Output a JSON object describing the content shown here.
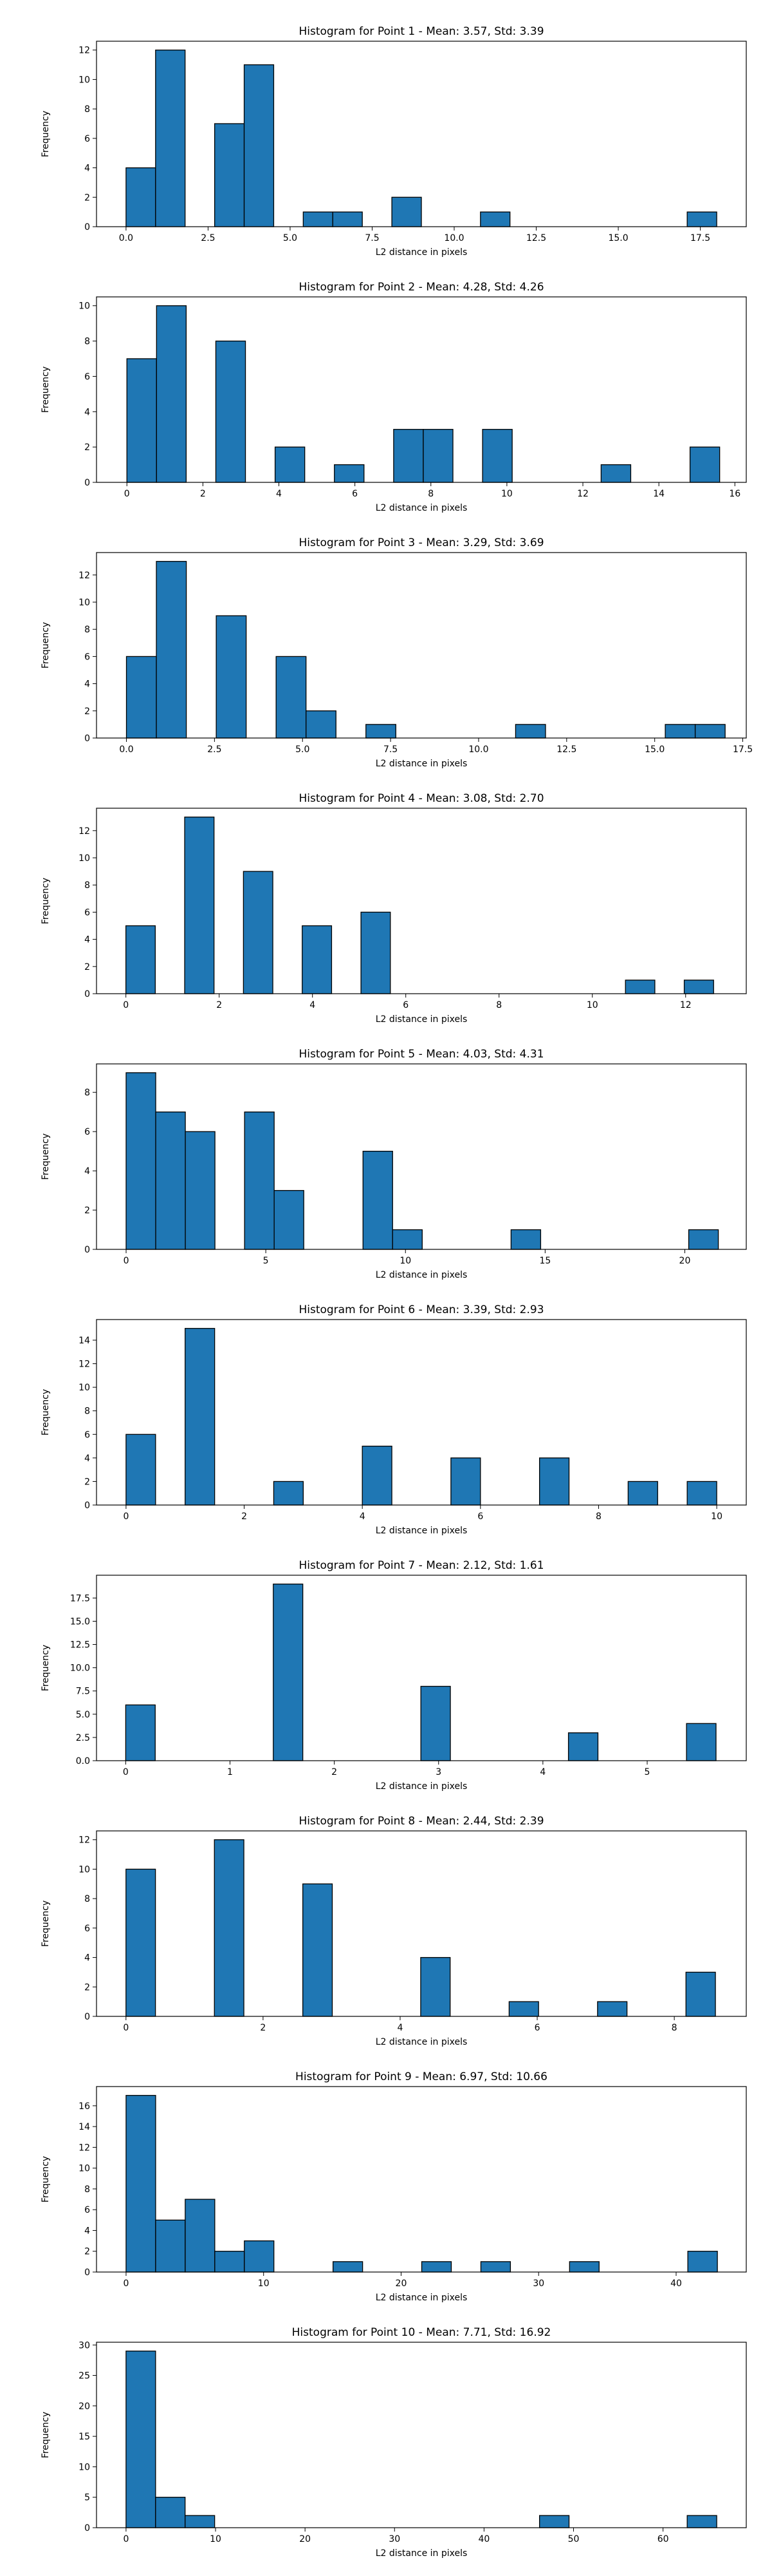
{
  "style": {
    "bar_fill": "#1f77b4",
    "bar_edge": "#000000",
    "axis_color": "#000000"
  },
  "chart_data": [
    {
      "type": "bar",
      "subtype": "histogram",
      "title": "Histogram for Point 1 - Mean: 3.57, Std: 3.39",
      "xlabel": "L2 distance in pixels",
      "ylabel": "Frequency",
      "xlim": [
        -0.9,
        18.9
      ],
      "ylim": [
        0,
        12.6
      ],
      "xticks": [
        0.0,
        2.5,
        5.0,
        7.5,
        10.0,
        12.5,
        15.0,
        17.5
      ],
      "xtick_labels": [
        "0.0",
        "2.5",
        "5.0",
        "7.5",
        "10.0",
        "12.5",
        "15.0",
        "17.5"
      ],
      "yticks": [
        0,
        2,
        4,
        6,
        8,
        10,
        12
      ],
      "bins": [
        {
          "x0": 0.0,
          "x1": 0.9,
          "count": 4
        },
        {
          "x0": 0.9,
          "x1": 1.8,
          "count": 12
        },
        {
          "x0": 2.7,
          "x1": 3.6,
          "count": 7
        },
        {
          "x0": 3.6,
          "x1": 4.5,
          "count": 11
        },
        {
          "x0": 5.4,
          "x1": 6.3,
          "count": 1
        },
        {
          "x0": 6.3,
          "x1": 7.2,
          "count": 1
        },
        {
          "x0": 8.1,
          "x1": 9.0,
          "count": 2
        },
        {
          "x0": 10.8,
          "x1": 11.7,
          "count": 1
        },
        {
          "x0": 17.1,
          "x1": 18.0,
          "count": 1
        }
      ]
    },
    {
      "type": "bar",
      "subtype": "histogram",
      "title": "Histogram for Point 2 - Mean: 4.28, Std: 4.26",
      "xlabel": "L2 distance in pixels",
      "ylabel": "Frequency",
      "xlim": [
        -0.8,
        16.3
      ],
      "ylim": [
        0,
        10.5
      ],
      "xticks": [
        0,
        2,
        4,
        6,
        8,
        10,
        12,
        14,
        16
      ],
      "xtick_labels": [
        "0",
        "2",
        "4",
        "6",
        "8",
        "10",
        "12",
        "14",
        "16"
      ],
      "yticks": [
        0,
        2,
        4,
        6,
        8,
        10
      ],
      "bins": [
        {
          "x0": 0.0,
          "x1": 0.78,
          "count": 7
        },
        {
          "x0": 0.78,
          "x1": 1.56,
          "count": 10
        },
        {
          "x0": 2.34,
          "x1": 3.12,
          "count": 8
        },
        {
          "x0": 3.9,
          "x1": 4.68,
          "count": 2
        },
        {
          "x0": 5.46,
          "x1": 6.24,
          "count": 1
        },
        {
          "x0": 7.02,
          "x1": 7.8,
          "count": 3
        },
        {
          "x0": 7.8,
          "x1": 8.58,
          "count": 3
        },
        {
          "x0": 9.36,
          "x1": 10.14,
          "count": 3
        },
        {
          "x0": 12.48,
          "x1": 13.26,
          "count": 1
        },
        {
          "x0": 14.82,
          "x1": 15.6,
          "count": 2
        }
      ]
    },
    {
      "type": "bar",
      "subtype": "histogram",
      "title": "Histogram for Point 3 - Mean: 3.29, Std: 3.69",
      "xlabel": "L2 distance in pixels",
      "ylabel": "Frequency",
      "xlim": [
        -0.85,
        17.6
      ],
      "ylim": [
        0,
        13.65
      ],
      "xticks": [
        0.0,
        2.5,
        5.0,
        7.5,
        10.0,
        12.5,
        15.0,
        17.5
      ],
      "xtick_labels": [
        "0.0",
        "2.5",
        "5.0",
        "7.5",
        "10.0",
        "12.5",
        "15.0",
        "17.5"
      ],
      "yticks": [
        0,
        2,
        4,
        6,
        8,
        10,
        12
      ],
      "bins": [
        {
          "x0": 0.0,
          "x1": 0.85,
          "count": 6
        },
        {
          "x0": 0.85,
          "x1": 1.7,
          "count": 13
        },
        {
          "x0": 2.55,
          "x1": 3.4,
          "count": 9
        },
        {
          "x0": 4.25,
          "x1": 5.1,
          "count": 6
        },
        {
          "x0": 5.1,
          "x1": 5.95,
          "count": 2
        },
        {
          "x0": 6.8,
          "x1": 7.65,
          "count": 1
        },
        {
          "x0": 11.05,
          "x1": 11.9,
          "count": 1
        },
        {
          "x0": 15.3,
          "x1": 16.15,
          "count": 1
        },
        {
          "x0": 16.15,
          "x1": 17.0,
          "count": 1
        }
      ]
    },
    {
      "type": "bar",
      "subtype": "histogram",
      "title": "Histogram for Point 4 - Mean: 3.08, Std: 2.70",
      "xlabel": "L2 distance in pixels",
      "ylabel": "Frequency",
      "xlim": [
        -0.63,
        13.3
      ],
      "ylim": [
        0,
        13.65
      ],
      "xticks": [
        0,
        2,
        4,
        6,
        8,
        10,
        12
      ],
      "xtick_labels": [
        "0",
        "2",
        "4",
        "6",
        "8",
        "10",
        "12"
      ],
      "yticks": [
        0,
        2,
        4,
        6,
        8,
        10,
        12
      ],
      "bins": [
        {
          "x0": 0.0,
          "x1": 0.63,
          "count": 5
        },
        {
          "x0": 1.26,
          "x1": 1.89,
          "count": 13
        },
        {
          "x0": 2.52,
          "x1": 3.15,
          "count": 9
        },
        {
          "x0": 3.78,
          "x1": 4.41,
          "count": 5
        },
        {
          "x0": 5.04,
          "x1": 5.67,
          "count": 6
        },
        {
          "x0": 10.71,
          "x1": 11.34,
          "count": 1
        },
        {
          "x0": 11.97,
          "x1": 12.6,
          "count": 1
        }
      ]
    },
    {
      "type": "bar",
      "subtype": "histogram",
      "title": "Histogram for Point 5 - Mean: 4.03, Std: 4.31",
      "xlabel": "L2 distance in pixels",
      "ylabel": "Frequency",
      "xlim": [
        -1.06,
        22.2
      ],
      "ylim": [
        0,
        9.45
      ],
      "xticks": [
        0,
        5,
        10,
        15,
        20
      ],
      "xtick_labels": [
        "0",
        "5",
        "10",
        "15",
        "20"
      ],
      "yticks": [
        0,
        2,
        4,
        6,
        8
      ],
      "bins": [
        {
          "x0": 0.0,
          "x1": 1.06,
          "count": 9
        },
        {
          "x0": 1.06,
          "x1": 2.12,
          "count": 7
        },
        {
          "x0": 2.12,
          "x1": 3.18,
          "count": 6
        },
        {
          "x0": 4.24,
          "x1": 5.3,
          "count": 7
        },
        {
          "x0": 5.3,
          "x1": 6.36,
          "count": 3
        },
        {
          "x0": 8.48,
          "x1": 9.54,
          "count": 5
        },
        {
          "x0": 9.54,
          "x1": 10.6,
          "count": 1
        },
        {
          "x0": 13.78,
          "x1": 14.84,
          "count": 1
        },
        {
          "x0": 20.14,
          "x1": 21.2,
          "count": 1
        }
      ]
    },
    {
      "type": "bar",
      "subtype": "histogram",
      "title": "Histogram for Point 6 - Mean: 3.39, Std: 2.93",
      "xlabel": "L2 distance in pixels",
      "ylabel": "Frequency",
      "xlim": [
        -0.5,
        10.5
      ],
      "ylim": [
        0,
        15.75
      ],
      "xticks": [
        0,
        2,
        4,
        6,
        8,
        10
      ],
      "xtick_labels": [
        "0",
        "2",
        "4",
        "6",
        "8",
        "10"
      ],
      "yticks": [
        0,
        2,
        4,
        6,
        8,
        10,
        12,
        14
      ],
      "bins": [
        {
          "x0": 0.0,
          "x1": 0.5,
          "count": 6
        },
        {
          "x0": 1.0,
          "x1": 1.5,
          "count": 15
        },
        {
          "x0": 2.5,
          "x1": 3.0,
          "count": 2
        },
        {
          "x0": 4.0,
          "x1": 4.5,
          "count": 5
        },
        {
          "x0": 5.5,
          "x1": 6.0,
          "count": 4
        },
        {
          "x0": 7.0,
          "x1": 7.5,
          "count": 4
        },
        {
          "x0": 8.5,
          "x1": 9.0,
          "count": 2
        },
        {
          "x0": 9.5,
          "x1": 10.0,
          "count": 2
        }
      ]
    },
    {
      "type": "bar",
      "subtype": "histogram",
      "title": "Histogram for Point 7 - Mean: 2.12, Std: 1.61",
      "xlabel": "L2 distance in pixels",
      "ylabel": "Frequency",
      "xlim": [
        -0.28,
        5.95
      ],
      "ylim": [
        0,
        19.95
      ],
      "xticks": [
        0,
        1,
        2,
        3,
        4,
        5
      ],
      "xtick_labels": [
        "0",
        "1",
        "2",
        "3",
        "4",
        "5"
      ],
      "yticks": [
        0.0,
        2.5,
        5.0,
        7.5,
        10.0,
        12.5,
        15.0,
        17.5
      ],
      "ytick_labels": [
        "0.0",
        "2.5",
        "5.0",
        "7.5",
        "10.0",
        "12.5",
        "15.0",
        "17.5"
      ],
      "bins": [
        {
          "x0": 0.0,
          "x1": 0.283,
          "count": 6
        },
        {
          "x0": 1.415,
          "x1": 1.698,
          "count": 19
        },
        {
          "x0": 2.83,
          "x1": 3.113,
          "count": 8
        },
        {
          "x0": 4.245,
          "x1": 4.528,
          "count": 3
        },
        {
          "x0": 5.377,
          "x1": 5.66,
          "count": 4
        }
      ]
    },
    {
      "type": "bar",
      "subtype": "histogram",
      "title": "Histogram for Point 8 - Mean: 2.44, Std: 2.39",
      "xlabel": "L2 distance in pixels",
      "ylabel": "Frequency",
      "xlim": [
        -0.43,
        9.05
      ],
      "ylim": [
        0,
        12.6
      ],
      "xticks": [
        0,
        2,
        4,
        6,
        8
      ],
      "xtick_labels": [
        "0",
        "2",
        "4",
        "6",
        "8"
      ],
      "yticks": [
        0,
        2,
        4,
        6,
        8,
        10,
        12
      ],
      "bins": [
        {
          "x0": 0.0,
          "x1": 0.43,
          "count": 10
        },
        {
          "x0": 1.29,
          "x1": 1.72,
          "count": 12
        },
        {
          "x0": 2.58,
          "x1": 3.01,
          "count": 9
        },
        {
          "x0": 4.3,
          "x1": 4.73,
          "count": 4
        },
        {
          "x0": 5.59,
          "x1": 6.02,
          "count": 1
        },
        {
          "x0": 6.88,
          "x1": 7.31,
          "count": 1
        },
        {
          "x0": 8.17,
          "x1": 8.6,
          "count": 3
        }
      ]
    },
    {
      "type": "bar",
      "subtype": "histogram",
      "title": "Histogram for Point 9 - Mean: 6.97, Std: 10.66",
      "xlabel": "L2 distance in pixels",
      "ylabel": "Frequency",
      "xlim": [
        -2.15,
        45.1
      ],
      "ylim": [
        0,
        17.85
      ],
      "xticks": [
        0,
        10,
        20,
        30,
        40
      ],
      "xtick_labels": [
        "0",
        "10",
        "20",
        "30",
        "40"
      ],
      "yticks": [
        0,
        2,
        4,
        6,
        8,
        10,
        12,
        14,
        16
      ],
      "bins": [
        {
          "x0": 0.0,
          "x1": 2.15,
          "count": 17
        },
        {
          "x0": 2.15,
          "x1": 4.3,
          "count": 5
        },
        {
          "x0": 4.3,
          "x1": 6.45,
          "count": 7
        },
        {
          "x0": 6.45,
          "x1": 8.6,
          "count": 2
        },
        {
          "x0": 8.6,
          "x1": 10.75,
          "count": 3
        },
        {
          "x0": 15.05,
          "x1": 17.2,
          "count": 1
        },
        {
          "x0": 21.5,
          "x1": 23.65,
          "count": 1
        },
        {
          "x0": 25.8,
          "x1": 27.95,
          "count": 1
        },
        {
          "x0": 32.25,
          "x1": 34.4,
          "count": 1
        },
        {
          "x0": 40.85,
          "x1": 43.0,
          "count": 2
        }
      ]
    },
    {
      "type": "bar",
      "subtype": "histogram",
      "title": "Histogram for Point 10 - Mean: 7.71, Std: 16.92",
      "xlabel": "L2 distance in pixels",
      "ylabel": "Frequency",
      "xlim": [
        -3.3,
        69.3
      ],
      "ylim": [
        0,
        30.45
      ],
      "xticks": [
        0,
        10,
        20,
        30,
        40,
        50,
        60
      ],
      "xtick_labels": [
        "0",
        "10",
        "20",
        "30",
        "40",
        "50",
        "60"
      ],
      "yticks": [
        0,
        5,
        10,
        15,
        20,
        25,
        30
      ],
      "bins": [
        {
          "x0": 0.0,
          "x1": 3.3,
          "count": 29
        },
        {
          "x0": 3.3,
          "x1": 6.6,
          "count": 5
        },
        {
          "x0": 6.6,
          "x1": 9.9,
          "count": 2
        },
        {
          "x0": 46.2,
          "x1": 49.5,
          "count": 2
        },
        {
          "x0": 62.7,
          "x1": 66.0,
          "count": 2
        }
      ]
    }
  ]
}
